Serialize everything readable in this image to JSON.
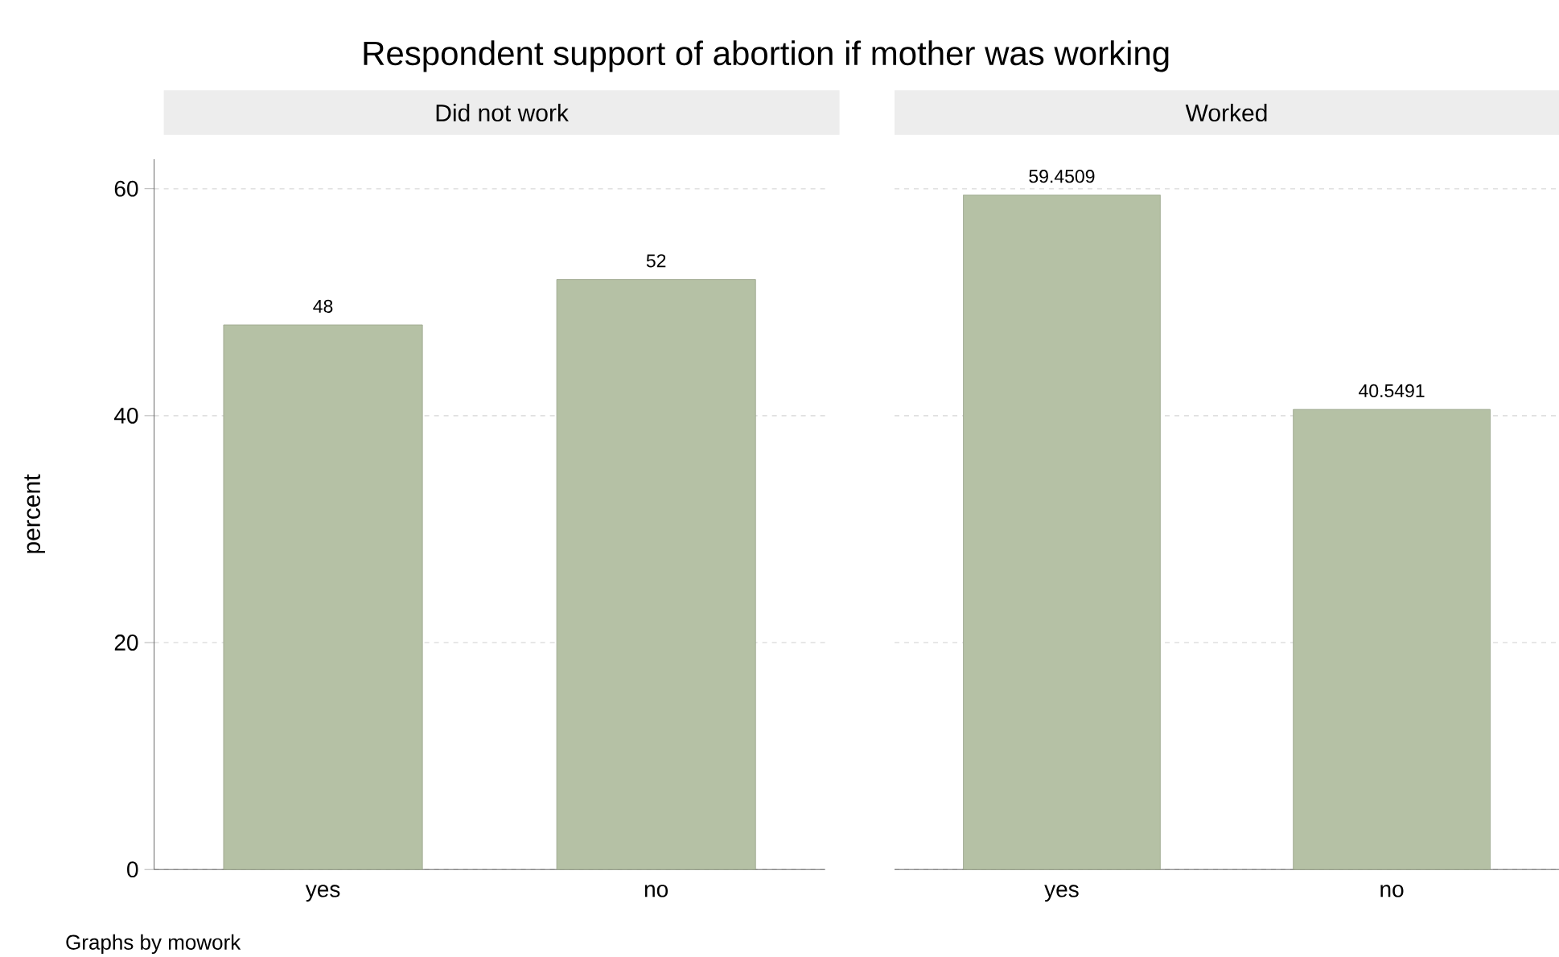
{
  "chart_data": [
    {
      "type": "bar",
      "title": "Respondent support of abortion if mother was working",
      "subtitle": "Did not work",
      "ylabel": "percent",
      "categories": [
        "yes",
        "no"
      ],
      "values": [
        48,
        52
      ],
      "color": "#b5c1a5",
      "ylim": [
        0,
        62.6
      ],
      "yticks": [
        0,
        20,
        40,
        60
      ],
      "grid": "y",
      "data_labels": true,
      "annotations": [
        "Graphs by mowork"
      ]
    },
    {
      "type": "bar",
      "subtitle": "Worked",
      "categories": [
        "yes",
        "no"
      ],
      "values": [
        59.4509,
        40.5491
      ],
      "color": "#b5c1a5",
      "yticks": [
        0,
        20,
        40,
        60
      ],
      "grid": "y",
      "data_labels": true,
      "tick_labels": "x"
    }
  ]
}
